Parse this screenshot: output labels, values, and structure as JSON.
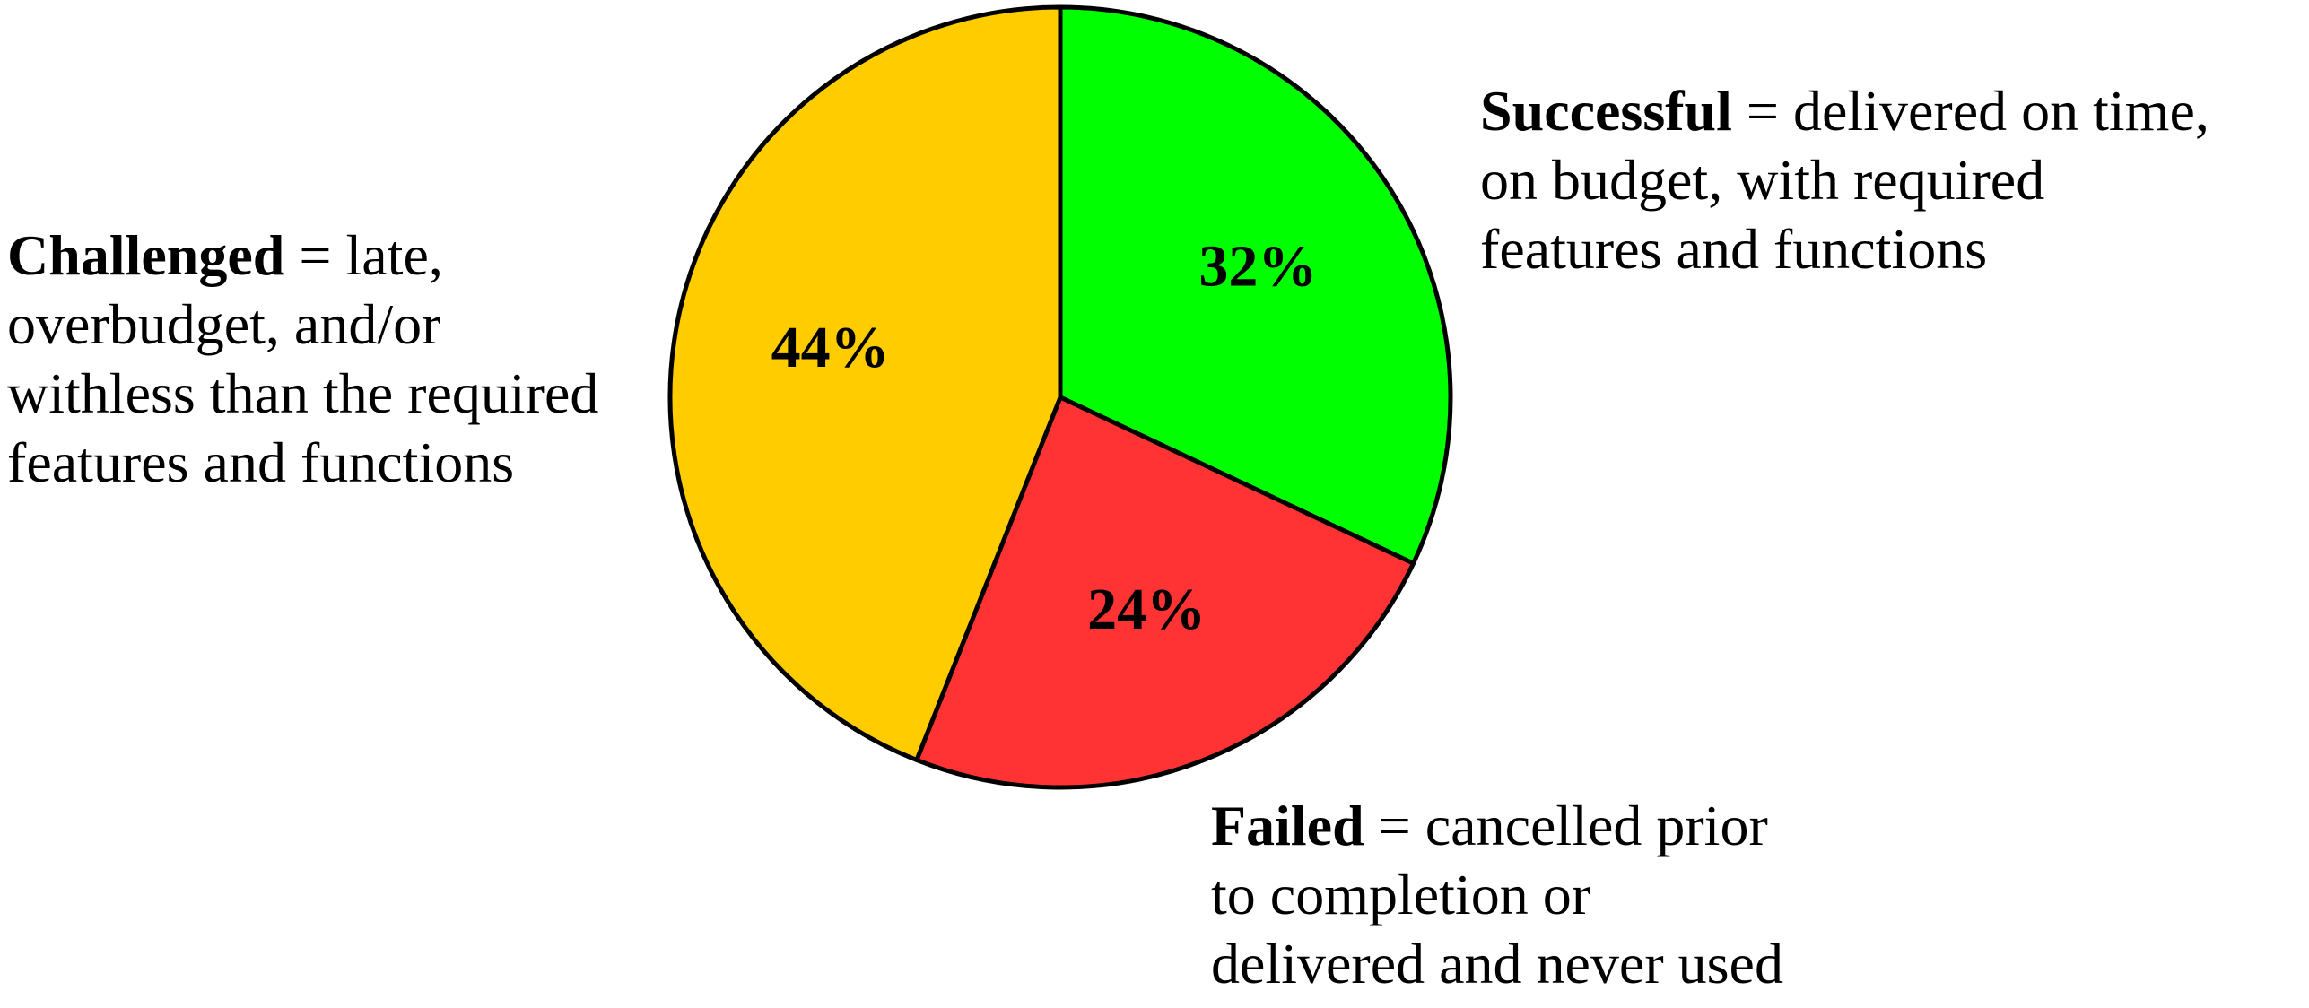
{
  "chart_data": {
    "type": "pie",
    "categories": [
      "Successful",
      "Failed",
      "Challenged"
    ],
    "values": [
      32,
      24,
      44
    ],
    "value_labels": [
      "32%",
      "24%",
      "44%"
    ],
    "colors": [
      "#00ff00",
      "#ff3333",
      "#ffcc00"
    ],
    "descriptions": [
      [
        "= delivered on time,",
        "on budget, with required",
        "features and functions"
      ],
      [
        "= cancelled prior",
        "to completion or",
        "delivered and never used"
      ],
      [
        "= late,",
        "overbudget, and/or",
        "withless than the required",
        "features and functions"
      ]
    ]
  }
}
